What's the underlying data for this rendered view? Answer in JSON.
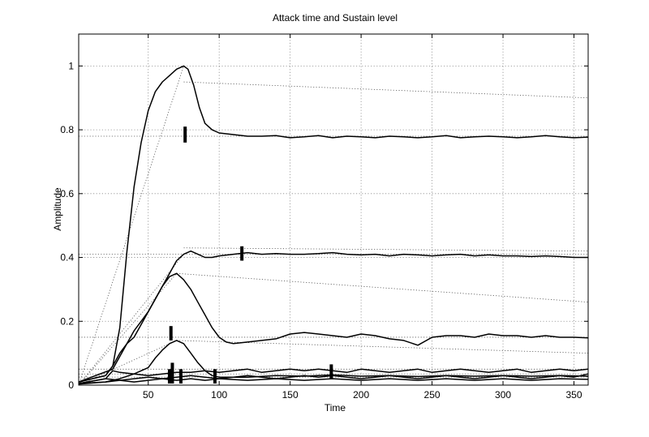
{
  "chart_data": {
    "type": "line",
    "title": "Attack time and Sustain level",
    "xlabel": "Time",
    "ylabel": "Amplitude",
    "xlim": [
      1,
      360
    ],
    "ylim": [
      0,
      1.1
    ],
    "x_ticks": [
      50,
      100,
      150,
      200,
      250,
      300,
      350
    ],
    "y_ticks": [
      0,
      0.2,
      0.4,
      0.6,
      0.8,
      1
    ],
    "y_tick_labels": [
      "0",
      "0.2",
      "0.4",
      "0.6",
      "0.8",
      "1"
    ],
    "grid": true,
    "legend": "none",
    "line_color": "#000000",
    "series": [
      {
        "points": [
          [
            1,
            0.01
          ],
          [
            20,
            0.03
          ],
          [
            25,
            0.06
          ],
          [
            30,
            0.18
          ],
          [
            35,
            0.42
          ],
          [
            40,
            0.62
          ],
          [
            45,
            0.76
          ],
          [
            50,
            0.86
          ],
          [
            55,
            0.92
          ],
          [
            60,
            0.95
          ],
          [
            65,
            0.97
          ],
          [
            70,
            0.99
          ],
          [
            75,
            1.0
          ],
          [
            78,
            0.99
          ],
          [
            82,
            0.94
          ],
          [
            86,
            0.87
          ],
          [
            90,
            0.82
          ],
          [
            95,
            0.8
          ],
          [
            100,
            0.79
          ],
          [
            110,
            0.785
          ],
          [
            120,
            0.78
          ],
          [
            130,
            0.78
          ],
          [
            140,
            0.782
          ],
          [
            150,
            0.775
          ],
          [
            160,
            0.778
          ],
          [
            170,
            0.782
          ],
          [
            180,
            0.775
          ],
          [
            190,
            0.78
          ],
          [
            200,
            0.778
          ],
          [
            210,
            0.775
          ],
          [
            220,
            0.78
          ],
          [
            230,
            0.778
          ],
          [
            240,
            0.775
          ],
          [
            250,
            0.778
          ],
          [
            260,
            0.782
          ],
          [
            270,
            0.775
          ],
          [
            280,
            0.778
          ],
          [
            290,
            0.78
          ],
          [
            300,
            0.778
          ],
          [
            310,
            0.775
          ],
          [
            320,
            0.778
          ],
          [
            330,
            0.782
          ],
          [
            340,
            0.778
          ],
          [
            350,
            0.775
          ],
          [
            360,
            0.777
          ]
        ]
      },
      {
        "points": [
          [
            1,
            0.01
          ],
          [
            25,
            0.05
          ],
          [
            30,
            0.09
          ],
          [
            35,
            0.13
          ],
          [
            40,
            0.17
          ],
          [
            45,
            0.2
          ],
          [
            50,
            0.23
          ],
          [
            55,
            0.27
          ],
          [
            60,
            0.31
          ],
          [
            65,
            0.35
          ],
          [
            70,
            0.39
          ],
          [
            75,
            0.41
          ],
          [
            80,
            0.42
          ],
          [
            85,
            0.41
          ],
          [
            90,
            0.4
          ],
          [
            95,
            0.4
          ],
          [
            100,
            0.405
          ],
          [
            110,
            0.41
          ],
          [
            120,
            0.415
          ],
          [
            130,
            0.41
          ],
          [
            140,
            0.412
          ],
          [
            150,
            0.41
          ],
          [
            160,
            0.41
          ],
          [
            170,
            0.412
          ],
          [
            180,
            0.415
          ],
          [
            190,
            0.41
          ],
          [
            200,
            0.408
          ],
          [
            210,
            0.41
          ],
          [
            220,
            0.405
          ],
          [
            230,
            0.41
          ],
          [
            240,
            0.408
          ],
          [
            250,
            0.405
          ],
          [
            260,
            0.408
          ],
          [
            270,
            0.41
          ],
          [
            280,
            0.405
          ],
          [
            290,
            0.408
          ],
          [
            300,
            0.405
          ],
          [
            310,
            0.405
          ],
          [
            320,
            0.403
          ],
          [
            330,
            0.405
          ],
          [
            340,
            0.403
          ],
          [
            350,
            0.4
          ],
          [
            360,
            0.4
          ]
        ]
      },
      {
        "points": [
          [
            1,
            0.01
          ],
          [
            20,
            0.03
          ],
          [
            25,
            0.06
          ],
          [
            30,
            0.1
          ],
          [
            35,
            0.13
          ],
          [
            40,
            0.15
          ],
          [
            45,
            0.19
          ],
          [
            50,
            0.23
          ],
          [
            55,
            0.27
          ],
          [
            60,
            0.31
          ],
          [
            65,
            0.34
          ],
          [
            70,
            0.35
          ],
          [
            75,
            0.33
          ],
          [
            80,
            0.3
          ],
          [
            85,
            0.26
          ],
          [
            90,
            0.22
          ],
          [
            95,
            0.18
          ],
          [
            100,
            0.15
          ],
          [
            105,
            0.135
          ],
          [
            110,
            0.13
          ],
          [
            120,
            0.135
          ],
          [
            130,
            0.14
          ],
          [
            140,
            0.145
          ],
          [
            150,
            0.16
          ],
          [
            160,
            0.165
          ],
          [
            170,
            0.16
          ],
          [
            180,
            0.155
          ],
          [
            190,
            0.15
          ],
          [
            200,
            0.16
          ],
          [
            210,
            0.155
          ],
          [
            220,
            0.145
          ],
          [
            230,
            0.14
          ],
          [
            240,
            0.125
          ],
          [
            250,
            0.15
          ],
          [
            260,
            0.155
          ],
          [
            270,
            0.155
          ],
          [
            280,
            0.15
          ],
          [
            290,
            0.16
          ],
          [
            300,
            0.155
          ],
          [
            310,
            0.155
          ],
          [
            320,
            0.15
          ],
          [
            330,
            0.155
          ],
          [
            340,
            0.15
          ],
          [
            350,
            0.15
          ],
          [
            360,
            0.148
          ]
        ]
      },
      {
        "points": [
          [
            1,
            0.005
          ],
          [
            20,
            0.01
          ],
          [
            30,
            0.02
          ],
          [
            40,
            0.035
          ],
          [
            50,
            0.055
          ],
          [
            55,
            0.085
          ],
          [
            60,
            0.11
          ],
          [
            65,
            0.13
          ],
          [
            70,
            0.14
          ],
          [
            75,
            0.13
          ],
          [
            80,
            0.1
          ],
          [
            85,
            0.07
          ],
          [
            90,
            0.045
          ],
          [
            95,
            0.03
          ],
          [
            100,
            0.025
          ],
          [
            120,
            0.025
          ],
          [
            140,
            0.03
          ],
          [
            160,
            0.028
          ],
          [
            180,
            0.032
          ],
          [
            200,
            0.028
          ],
          [
            220,
            0.03
          ],
          [
            240,
            0.027
          ],
          [
            260,
            0.03
          ],
          [
            280,
            0.028
          ],
          [
            300,
            0.03
          ],
          [
            320,
            0.028
          ],
          [
            340,
            0.03
          ],
          [
            360,
            0.028
          ]
        ]
      },
      {
        "points": [
          [
            1,
            0.005
          ],
          [
            20,
            0.02
          ],
          [
            25,
            0.045
          ],
          [
            30,
            0.04
          ],
          [
            40,
            0.035
          ],
          [
            50,
            0.03
          ],
          [
            60,
            0.035
          ],
          [
            70,
            0.04
          ],
          [
            80,
            0.04
          ],
          [
            90,
            0.045
          ],
          [
            100,
            0.04
          ],
          [
            110,
            0.045
          ],
          [
            120,
            0.05
          ],
          [
            130,
            0.04
          ],
          [
            140,
            0.045
          ],
          [
            150,
            0.05
          ],
          [
            160,
            0.045
          ],
          [
            170,
            0.05
          ],
          [
            180,
            0.045
          ],
          [
            190,
            0.04
          ],
          [
            200,
            0.05
          ],
          [
            210,
            0.045
          ],
          [
            220,
            0.04
          ],
          [
            230,
            0.045
          ],
          [
            240,
            0.05
          ],
          [
            250,
            0.04
          ],
          [
            260,
            0.045
          ],
          [
            270,
            0.05
          ],
          [
            280,
            0.045
          ],
          [
            290,
            0.04
          ],
          [
            300,
            0.045
          ],
          [
            310,
            0.05
          ],
          [
            320,
            0.04
          ],
          [
            330,
            0.045
          ],
          [
            340,
            0.05
          ],
          [
            350,
            0.045
          ],
          [
            360,
            0.05
          ]
        ]
      },
      {
        "points": [
          [
            1,
            0.005
          ],
          [
            20,
            0.02
          ],
          [
            30,
            0.015
          ],
          [
            40,
            0.02
          ],
          [
            50,
            0.025
          ],
          [
            60,
            0.02
          ],
          [
            70,
            0.025
          ],
          [
            80,
            0.03
          ],
          [
            90,
            0.025
          ],
          [
            100,
            0.02
          ],
          [
            110,
            0.025
          ],
          [
            120,
            0.03
          ],
          [
            130,
            0.025
          ],
          [
            140,
            0.02
          ],
          [
            150,
            0.025
          ],
          [
            160,
            0.03
          ],
          [
            170,
            0.025
          ],
          [
            180,
            0.03
          ],
          [
            190,
            0.025
          ],
          [
            200,
            0.02
          ],
          [
            210,
            0.025
          ],
          [
            220,
            0.03
          ],
          [
            230,
            0.025
          ],
          [
            240,
            0.02
          ],
          [
            250,
            0.025
          ],
          [
            260,
            0.03
          ],
          [
            270,
            0.025
          ],
          [
            280,
            0.02
          ],
          [
            290,
            0.025
          ],
          [
            300,
            0.03
          ],
          [
            310,
            0.025
          ],
          [
            320,
            0.02
          ],
          [
            330,
            0.025
          ],
          [
            340,
            0.03
          ],
          [
            350,
            0.025
          ],
          [
            360,
            0.035
          ]
        ]
      },
      {
        "points": [
          [
            1,
            0.003
          ],
          [
            20,
            0.01
          ],
          [
            30,
            0.015
          ],
          [
            40,
            0.01
          ],
          [
            50,
            0.015
          ],
          [
            60,
            0.02
          ],
          [
            70,
            0.015
          ],
          [
            80,
            0.02
          ],
          [
            90,
            0.015
          ],
          [
            100,
            0.02
          ],
          [
            120,
            0.015
          ],
          [
            140,
            0.02
          ],
          [
            160,
            0.015
          ],
          [
            180,
            0.02
          ],
          [
            200,
            0.015
          ],
          [
            220,
            0.02
          ],
          [
            240,
            0.015
          ],
          [
            260,
            0.02
          ],
          [
            280,
            0.015
          ],
          [
            300,
            0.02
          ],
          [
            320,
            0.015
          ],
          [
            340,
            0.02
          ],
          [
            360,
            0.018
          ]
        ]
      }
    ],
    "sustain_lines": [
      {
        "x": [
          1,
          360
        ],
        "y": [
          0.78,
          0.78
        ]
      },
      {
        "x": [
          1,
          360
        ],
        "y": [
          0.41,
          0.41
        ]
      },
      {
        "x": [
          1,
          360
        ],
        "y": [
          0.15,
          0.15
        ]
      },
      {
        "x": [
          1,
          360
        ],
        "y": [
          0.05,
          0.05
        ]
      },
      {
        "x": [
          1,
          360
        ],
        "y": [
          0.035,
          0.035
        ]
      },
      {
        "x": [
          1,
          360
        ],
        "y": [
          0.025,
          0.025
        ]
      }
    ],
    "guide_lines": [
      {
        "x": [
          1,
          75
        ],
        "y": [
          0,
          1.0
        ]
      },
      {
        "x": [
          75,
          360
        ],
        "y": [
          0.95,
          0.9
        ]
      },
      {
        "x": [
          1,
          75
        ],
        "y": [
          0,
          0.41
        ]
      },
      {
        "x": [
          75,
          360
        ],
        "y": [
          0.43,
          0.42
        ]
      },
      {
        "x": [
          1,
          70
        ],
        "y": [
          0,
          0.35
        ]
      },
      {
        "x": [
          70,
          360
        ],
        "y": [
          0.35,
          0.26
        ]
      },
      {
        "x": [
          1,
          70
        ],
        "y": [
          0,
          0.14
        ]
      },
      {
        "x": [
          70,
          360
        ],
        "y": [
          0.14,
          0.1
        ]
      }
    ],
    "attack_markers": [
      {
        "x": 76,
        "y_low": 0.76,
        "y_high": 0.81
      },
      {
        "x": 116,
        "y_low": 0.39,
        "y_high": 0.435
      },
      {
        "x": 66,
        "y_low": 0.14,
        "y_high": 0.185
      },
      {
        "x": 67,
        "y_low": 0.005,
        "y_high": 0.07
      },
      {
        "x": 65,
        "y_low": 0.005,
        "y_high": 0.05
      },
      {
        "x": 73,
        "y_low": 0.005,
        "y_high": 0.05
      },
      {
        "x": 97,
        "y_low": 0.005,
        "y_high": 0.05
      },
      {
        "x": 179,
        "y_low": 0.02,
        "y_high": 0.065
      }
    ]
  }
}
